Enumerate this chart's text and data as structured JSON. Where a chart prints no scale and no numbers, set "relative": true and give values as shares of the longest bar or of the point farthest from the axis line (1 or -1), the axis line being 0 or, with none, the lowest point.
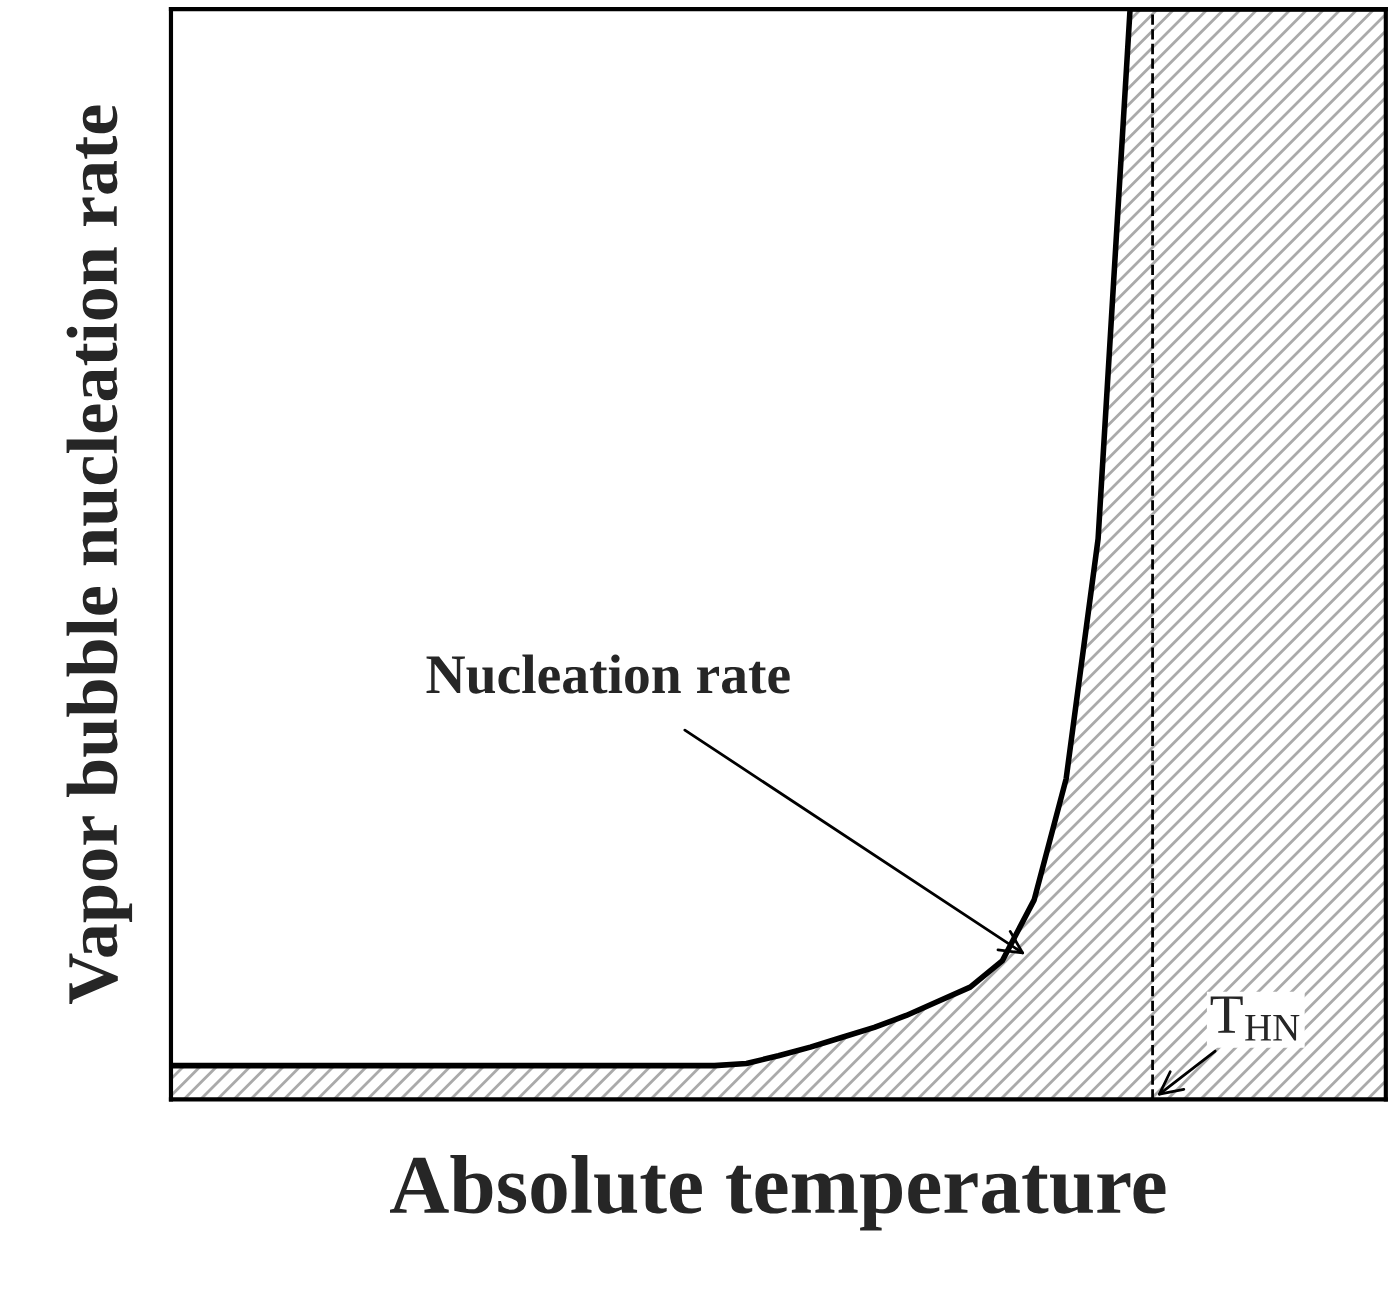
{
  "chart_data": {
    "type": "area",
    "relative": true,
    "xlabel": "Absolute temperature",
    "ylabel": "Vapor bubble nucleation rate",
    "categories": [
      null,
      null,
      null,
      null,
      null,
      null,
      null,
      null,
      null,
      null,
      null,
      null,
      null,
      null,
      null,
      null,
      null,
      null,
      null,
      null,
      null,
      null,
      null,
      null,
      null,
      null,
      null,
      null,
      null,
      null,
      null,
      null,
      null,
      null,
      null,
      null,
      null,
      null,
      null
    ],
    "series": [
      {
        "color": "#000000",
        "values": [
          0.031,
          0.031,
          0.031,
          0.031,
          0.031,
          0.031,
          0.031,
          0.031,
          0.031,
          0.031,
          0.031,
          0.031,
          0.031,
          0.031,
          0.031,
          0.031,
          0.031,
          0.031,
          0.033,
          0.04,
          0.048,
          0.057,
          0.066,
          0.077,
          0.09,
          0.103,
          0.127,
          0.183,
          0.294,
          0.514,
          1,
          1,
          1,
          1,
          1,
          1,
          1,
          1,
          1
        ]
      }
    ],
    "annotations": [
      "Nucleation rate",
      "T$_{HN}$"
    ],
    "legend": false
  }
}
